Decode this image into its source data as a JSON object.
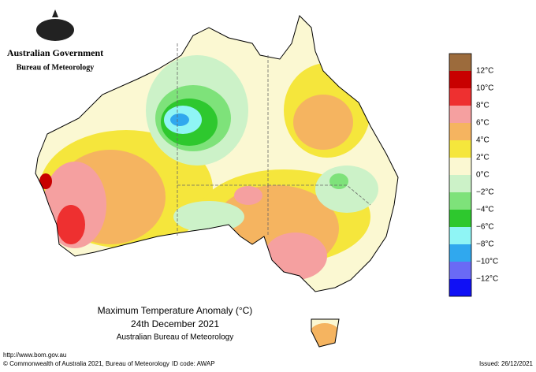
{
  "header": {
    "title": "Australian Government",
    "subtitle": "Bureau of Meteorology"
  },
  "map": {
    "title": "Maximum Temperature Anomaly (°C)",
    "date": "24th December 2021",
    "source": "Australian Bureau of Meteorology"
  },
  "legend": {
    "labels": [
      "12°C",
      "10°C",
      "8°C",
      "6°C",
      "4°C",
      "2°C",
      "0°C",
      "−2°C",
      "−4°C",
      "−6°C",
      "−8°C",
      "−10°C",
      "−12°C"
    ],
    "colors": [
      "#9c6b3c",
      "#c80000",
      "#ee3030",
      "#f5a0a0",
      "#f5b460",
      "#f5e63c",
      "#fbf8d2",
      "#ccf2c8",
      "#7ee27a",
      "#2ec82e",
      "#8ff5f5",
      "#30a8ee",
      "#6a6af5",
      "#1010f5"
    ]
  },
  "footer": {
    "url": "http://www.bom.gov.au",
    "copyright": "© Commonwealth of Australia 2021, Bureau of Meteorology",
    "id_code": "ID code: AWAP",
    "issued": "Issued: 26/12/2021"
  }
}
